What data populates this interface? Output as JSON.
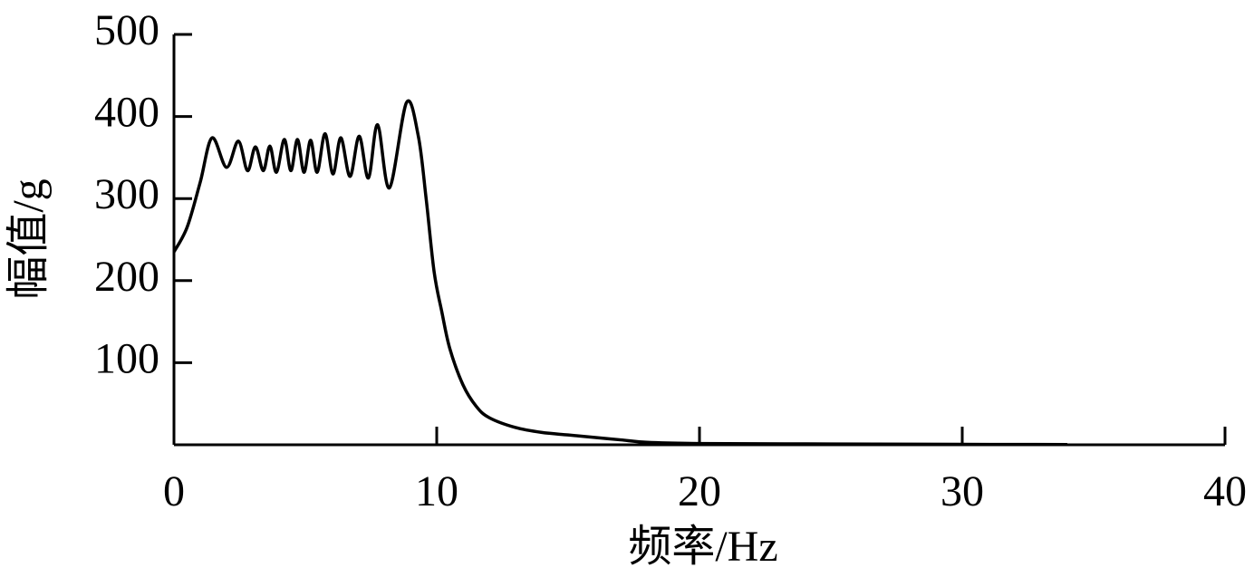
{
  "chart_data": {
    "type": "line",
    "x_label": "频率/Hz",
    "y_label": "幅值/g",
    "xlim": [
      0,
      40
    ],
    "xticks": [
      0,
      10,
      20,
      30,
      40
    ],
    "ylim": [
      0,
      500
    ],
    "yticks": [
      100,
      200,
      300,
      400,
      500
    ],
    "series": [
      {
        "color": "#000000",
        "x": [
          0,
          0.5,
          1.0,
          1.45,
          2.0,
          2.45,
          2.8,
          3.1,
          3.4,
          3.65,
          3.9,
          4.2,
          4.45,
          4.7,
          4.95,
          5.2,
          5.45,
          5.75,
          6.05,
          6.35,
          6.7,
          7.05,
          7.4,
          7.75,
          8.2,
          8.85,
          9.3,
          9.6,
          9.9,
          10.2,
          10.5,
          11,
          11.5,
          12,
          13,
          14,
          15,
          16,
          17,
          18,
          20,
          25,
          30,
          34
        ],
        "values": [
          235,
          265,
          320,
          374,
          338,
          370,
          334,
          363,
          334,
          364,
          332,
          372,
          334,
          372,
          332,
          371,
          332,
          379,
          330,
          374,
          327,
          376,
          325,
          390,
          313,
          417,
          376,
          299,
          211,
          161,
          117,
          73,
          47,
          33,
          21,
          15,
          12,
          9,
          6,
          3,
          1.5,
          1,
          0.5,
          0.3
        ]
      }
    ]
  }
}
